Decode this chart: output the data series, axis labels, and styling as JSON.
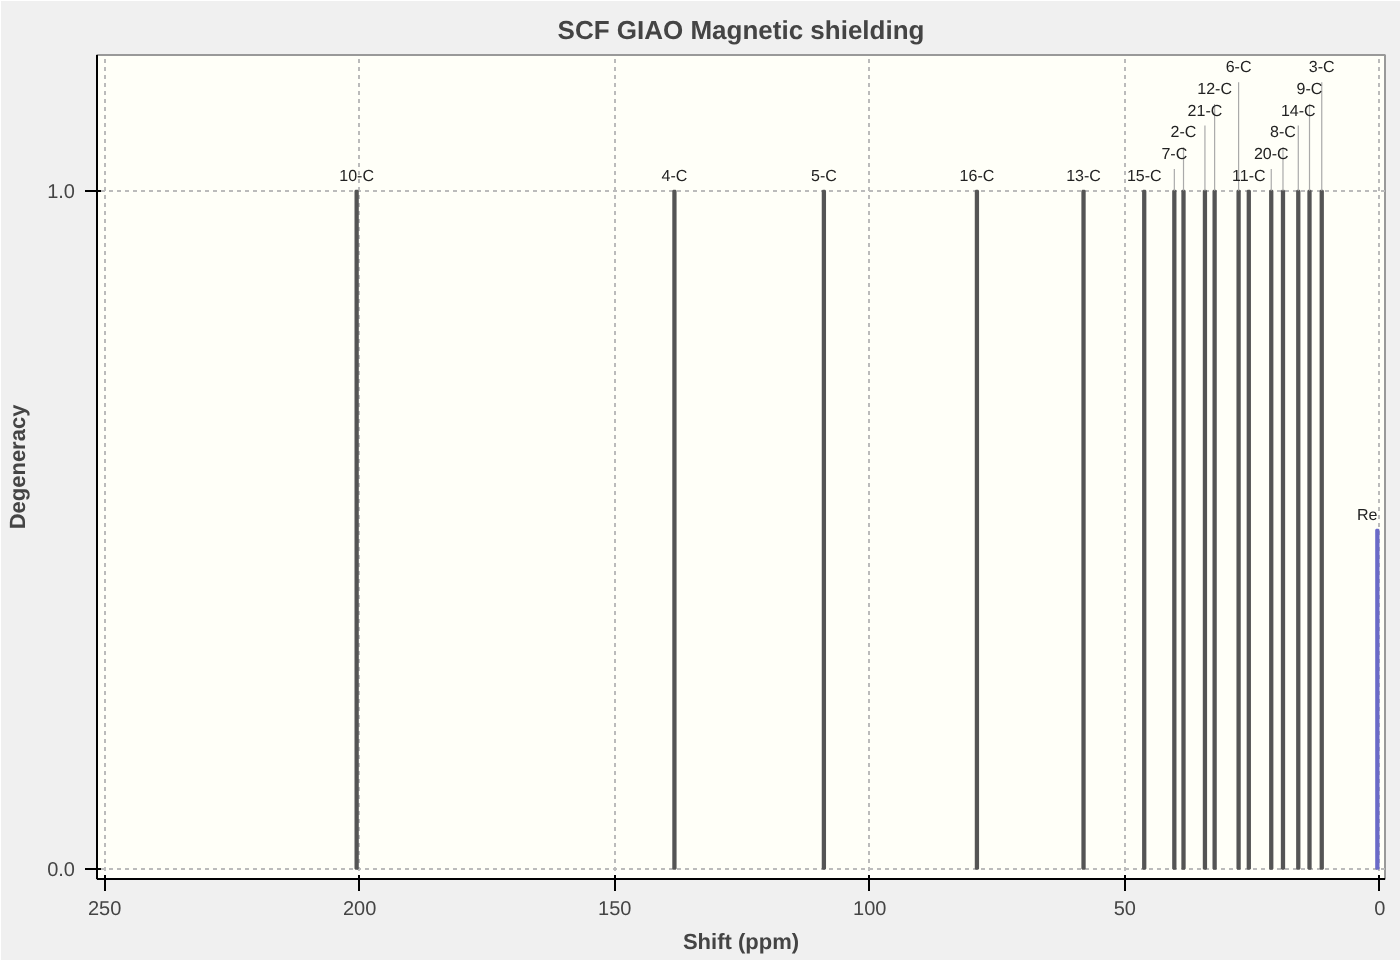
{
  "chart_data": {
    "type": "bar",
    "title": "SCF GIAO Magnetic shielding",
    "xlabel": "Shift (ppm)",
    "ylabel": "Degeneracy",
    "xlim": [
      251.5,
      -1
    ],
    "ylim": [
      -0.015,
      1.2
    ],
    "xticks": [
      250,
      200,
      150,
      100,
      50,
      0
    ],
    "yticks": [
      {
        "value": 0,
        "label": "0.0"
      },
      {
        "value": 1,
        "label": "1.0"
      }
    ],
    "grid": true,
    "series": [
      {
        "color": "#555555",
        "x": [
          200.6,
          138.3,
          109.0,
          79.0,
          58.1,
          46.2,
          40.3,
          38.5,
          34.3,
          32.4,
          27.7,
          25.7,
          21.3,
          19.0,
          16.0,
          13.8,
          11.4
        ],
        "values": [
          1,
          1,
          1,
          1,
          1,
          1,
          1,
          1,
          1,
          1,
          1,
          1,
          1,
          1,
          1,
          1,
          1
        ]
      },
      {
        "color": "#6a6ac8",
        "x": [
          0.5
        ],
        "values": [
          0.5
        ]
      }
    ],
    "annotations": [
      {
        "text": "10-C",
        "x": 200.6,
        "y": 1
      },
      {
        "text": "4-C",
        "x": 138.3,
        "y": 1
      },
      {
        "text": "5-C",
        "x": 109.0,
        "y": 1
      },
      {
        "text": "16-C",
        "x": 79.0,
        "y": 1
      },
      {
        "text": "13-C",
        "x": 58.1,
        "y": 1
      },
      {
        "text": "15-C",
        "x": 46.2,
        "y": 1
      },
      {
        "text": "7-C",
        "x": 40.3,
        "y": 1
      },
      {
        "text": "2-C",
        "x": 38.5,
        "y": 1
      },
      {
        "text": "21-C",
        "x": 34.3,
        "y": 1
      },
      {
        "text": "12-C",
        "x": 32.4,
        "y": 1
      },
      {
        "text": "6-C",
        "x": 27.7,
        "y": 1
      },
      {
        "text": "11-C",
        "x": 25.7,
        "y": 1
      },
      {
        "text": "20-C",
        "x": 21.3,
        "y": 1
      },
      {
        "text": "8-C",
        "x": 19.0,
        "y": 1
      },
      {
        "text": "14-C",
        "x": 16.0,
        "y": 1
      },
      {
        "text": "9-C",
        "x": 13.8,
        "y": 1
      },
      {
        "text": "3-C",
        "x": 11.4,
        "y": 1
      },
      {
        "text": "Re",
        "x": 0.5,
        "y": 0.5
      }
    ]
  }
}
